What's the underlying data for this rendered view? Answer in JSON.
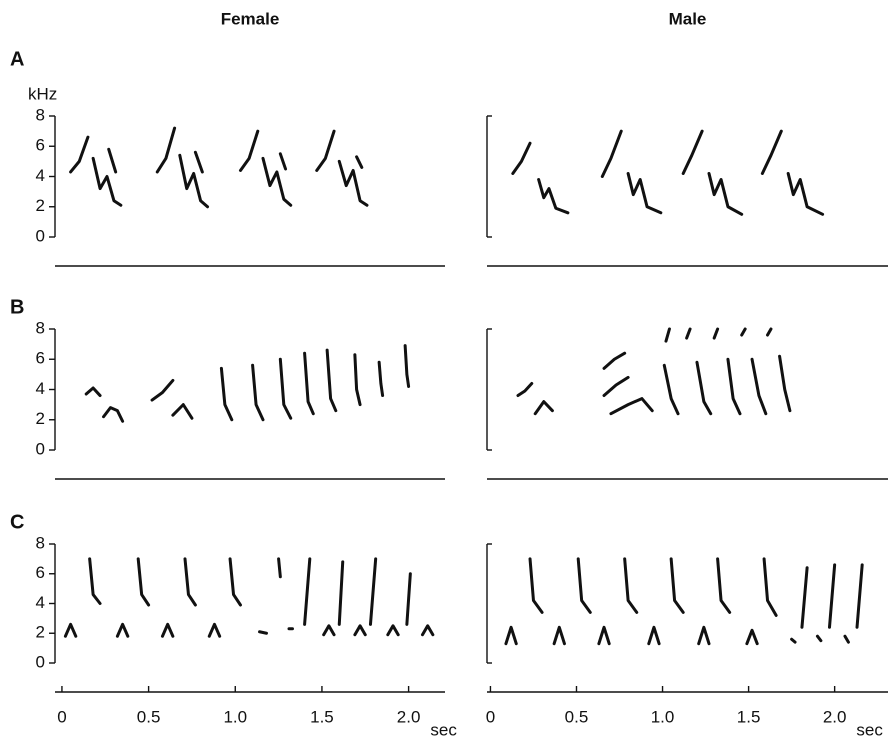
{
  "chart_data": [
    {
      "type": "spectrogram",
      "title": "Female",
      "panel_label": "A",
      "ylabel": "kHz",
      "xlim": [
        -0.04,
        2.21
      ],
      "ylim": [
        0,
        8
      ],
      "yticks": [
        0,
        2,
        4,
        6,
        8
      ],
      "strokes": [
        {
          "x": [
            0.05,
            0.1,
            0.15
          ],
          "y": [
            4.3,
            5.0,
            6.6
          ]
        },
        {
          "x": [
            0.18,
            0.22,
            0.26,
            0.3,
            0.34
          ],
          "y": [
            5.2,
            3.2,
            4.0,
            2.4,
            2.1
          ]
        },
        {
          "x": [
            0.27,
            0.31
          ],
          "y": [
            5.8,
            4.3
          ]
        },
        {
          "x": [
            0.55,
            0.6,
            0.65
          ],
          "y": [
            4.3,
            5.2,
            7.2
          ]
        },
        {
          "x": [
            0.68,
            0.72,
            0.76,
            0.8,
            0.84
          ],
          "y": [
            5.4,
            3.2,
            4.2,
            2.4,
            2.0
          ]
        },
        {
          "x": [
            0.77,
            0.81
          ],
          "y": [
            5.6,
            4.3
          ]
        },
        {
          "x": [
            1.03,
            1.08,
            1.13
          ],
          "y": [
            4.4,
            5.2,
            7.0
          ]
        },
        {
          "x": [
            1.16,
            1.2,
            1.24,
            1.28,
            1.32
          ],
          "y": [
            5.2,
            3.4,
            4.3,
            2.5,
            2.1
          ]
        },
        {
          "x": [
            1.26,
            1.29
          ],
          "y": [
            5.5,
            4.5
          ]
        },
        {
          "x": [
            1.47,
            1.52,
            1.57
          ],
          "y": [
            4.4,
            5.2,
            7.0
          ]
        },
        {
          "x": [
            1.6,
            1.64,
            1.68,
            1.72,
            1.76
          ],
          "y": [
            5.0,
            3.4,
            4.4,
            2.4,
            2.1
          ]
        },
        {
          "x": [
            1.7,
            1.73
          ],
          "y": [
            5.3,
            4.6
          ]
        }
      ]
    },
    {
      "type": "spectrogram",
      "title": "Male",
      "xlim": [
        -0.02,
        2.31
      ],
      "ylim": [
        0,
        8
      ],
      "strokes": [
        {
          "x": [
            0.13,
            0.18,
            0.23
          ],
          "y": [
            4.2,
            5.0,
            6.2
          ]
        },
        {
          "x": [
            0.28,
            0.31,
            0.34,
            0.38,
            0.45
          ],
          "y": [
            3.8,
            2.6,
            3.2,
            1.9,
            1.6
          ]
        },
        {
          "x": [
            0.65,
            0.7,
            0.76
          ],
          "y": [
            4.0,
            5.2,
            7.0
          ]
        },
        {
          "x": [
            0.8,
            0.83,
            0.87,
            0.91,
            0.99
          ],
          "y": [
            4.2,
            2.8,
            3.8,
            2.0,
            1.6
          ]
        },
        {
          "x": [
            1.12,
            1.17,
            1.23
          ],
          "y": [
            4.2,
            5.4,
            7.0
          ]
        },
        {
          "x": [
            1.27,
            1.3,
            1.34,
            1.38,
            1.46
          ],
          "y": [
            4.2,
            2.8,
            3.8,
            2.0,
            1.5
          ]
        },
        {
          "x": [
            1.58,
            1.63,
            1.69
          ],
          "y": [
            4.2,
            5.4,
            7.0
          ]
        },
        {
          "x": [
            1.73,
            1.76,
            1.8,
            1.84,
            1.93
          ],
          "y": [
            4.2,
            2.8,
            3.8,
            2.0,
            1.5
          ]
        }
      ]
    },
    {
      "type": "spectrogram",
      "panel_label": "B",
      "xlim": [
        -0.04,
        2.21
      ],
      "ylim": [
        0,
        8
      ],
      "yticks": [
        0,
        2,
        4,
        6,
        8
      ],
      "strokes": [
        {
          "x": [
            0.14,
            0.18,
            0.22
          ],
          "y": [
            3.7,
            4.1,
            3.6
          ]
        },
        {
          "x": [
            0.24,
            0.28,
            0.32,
            0.35
          ],
          "y": [
            2.2,
            2.8,
            2.6,
            1.9
          ]
        },
        {
          "x": [
            0.52,
            0.58,
            0.64
          ],
          "y": [
            3.3,
            3.8,
            4.6
          ]
        },
        {
          "x": [
            0.64,
            0.7,
            0.75
          ],
          "y": [
            2.3,
            3.0,
            2.1
          ]
        },
        {
          "x": [
            0.92,
            0.94,
            0.98
          ],
          "y": [
            5.4,
            3.0,
            2.0
          ]
        },
        {
          "x": [
            1.1,
            1.12,
            1.16
          ],
          "y": [
            5.6,
            3.0,
            2.0
          ]
        },
        {
          "x": [
            1.26,
            1.28,
            1.32
          ],
          "y": [
            6.0,
            3.0,
            2.1
          ]
        },
        {
          "x": [
            1.4,
            1.42,
            1.45
          ],
          "y": [
            6.4,
            3.2,
            2.4
          ]
        },
        {
          "x": [
            1.53,
            1.55,
            1.58
          ],
          "y": [
            6.6,
            3.4,
            2.6
          ]
        },
        {
          "x": [
            1.69,
            1.7,
            1.72
          ],
          "y": [
            6.3,
            4.0,
            3.0
          ]
        },
        {
          "x": [
            1.83,
            1.84,
            1.85
          ],
          "y": [
            5.8,
            4.4,
            3.6
          ]
        },
        {
          "x": [
            1.98,
            1.99,
            2.0
          ],
          "y": [
            6.9,
            5.0,
            4.2
          ]
        }
      ]
    },
    {
      "type": "spectrogram",
      "xlim": [
        -0.02,
        2.31
      ],
      "ylim": [
        0,
        8
      ],
      "strokes": [
        {
          "x": [
            0.16,
            0.2,
            0.24
          ],
          "y": [
            3.6,
            3.9,
            4.4
          ]
        },
        {
          "x": [
            0.26,
            0.31,
            0.36
          ],
          "y": [
            2.4,
            3.2,
            2.6
          ]
        },
        {
          "x": [
            0.66,
            0.72,
            0.78
          ],
          "y": [
            5.4,
            6.0,
            6.4
          ]
        },
        {
          "x": [
            0.66,
            0.73,
            0.8
          ],
          "y": [
            3.6,
            4.3,
            4.8
          ]
        },
        {
          "x": [
            0.7,
            0.8,
            0.88,
            0.94
          ],
          "y": [
            2.4,
            3.0,
            3.4,
            2.6
          ]
        },
        {
          "x": [
            1.01,
            1.05,
            1.09
          ],
          "y": [
            5.6,
            3.4,
            2.4
          ]
        },
        {
          "x": [
            1.2,
            1.24,
            1.28
          ],
          "y": [
            5.8,
            3.2,
            2.4
          ]
        },
        {
          "x": [
            1.38,
            1.41,
            1.45
          ],
          "y": [
            6.0,
            3.4,
            2.4
          ]
        },
        {
          "x": [
            1.52,
            1.56,
            1.6
          ],
          "y": [
            6.0,
            3.6,
            2.4
          ]
        },
        {
          "x": [
            1.68,
            1.71,
            1.74
          ],
          "y": [
            6.2,
            4.0,
            2.6
          ]
        },
        {
          "x": [
            1.02,
            1.04
          ],
          "y": [
            7.2,
            8.0
          ]
        },
        {
          "x": [
            1.14,
            1.16
          ],
          "y": [
            7.4,
            8.0
          ]
        },
        {
          "x": [
            1.3,
            1.32
          ],
          "y": [
            7.4,
            8.0
          ]
        },
        {
          "x": [
            1.46,
            1.48
          ],
          "y": [
            7.6,
            8.0
          ]
        },
        {
          "x": [
            1.61,
            1.63
          ],
          "y": [
            7.6,
            8.0
          ]
        }
      ]
    },
    {
      "type": "spectrogram",
      "panel_label": "C",
      "xlabel": "sec",
      "xlim": [
        -0.04,
        2.21
      ],
      "ylim": [
        0,
        8
      ],
      "yticks": [
        0,
        2,
        4,
        6,
        8
      ],
      "xticks": [
        0,
        0.5,
        {
          "value": 1,
          "label": "1.0"
        },
        1.5,
        {
          "value": 2,
          "label": "2.0"
        }
      ],
      "strokes": [
        {
          "x": [
            0.02,
            0.05,
            0.08
          ],
          "y": [
            1.8,
            2.6,
            1.8
          ]
        },
        {
          "x": [
            0.32,
            0.35,
            0.38
          ],
          "y": [
            1.8,
            2.6,
            1.8
          ]
        },
        {
          "x": [
            0.58,
            0.61,
            0.64
          ],
          "y": [
            1.8,
            2.6,
            1.8
          ]
        },
        {
          "x": [
            0.85,
            0.88,
            0.91
          ],
          "y": [
            1.8,
            2.6,
            1.8
          ]
        },
        {
          "x": [
            1.14,
            1.18
          ],
          "y": [
            2.1,
            2.0
          ]
        },
        {
          "x": [
            1.31,
            1.33
          ],
          "y": [
            2.3,
            2.3
          ]
        },
        {
          "x": [
            1.51,
            1.54,
            1.57
          ],
          "y": [
            1.9,
            2.5,
            1.9
          ]
        },
        {
          "x": [
            1.69,
            1.72,
            1.75
          ],
          "y": [
            1.9,
            2.5,
            1.9
          ]
        },
        {
          "x": [
            1.88,
            1.91,
            1.94
          ],
          "y": [
            1.9,
            2.5,
            1.9
          ]
        },
        {
          "x": [
            2.08,
            2.11,
            2.14
          ],
          "y": [
            1.9,
            2.5,
            1.9
          ]
        },
        {
          "x": [
            0.16,
            0.18,
            0.22
          ],
          "y": [
            7.0,
            4.6,
            4.0
          ]
        },
        {
          "x": [
            0.44,
            0.46,
            0.5
          ],
          "y": [
            7.0,
            4.6,
            3.9
          ]
        },
        {
          "x": [
            0.71,
            0.73,
            0.77
          ],
          "y": [
            7.0,
            4.6,
            3.9
          ]
        },
        {
          "x": [
            0.97,
            0.99,
            1.03
          ],
          "y": [
            7.0,
            4.6,
            3.9
          ]
        },
        {
          "x": [
            1.25,
            1.26
          ],
          "y": [
            7.0,
            5.8
          ]
        },
        {
          "x": [
            1.43,
            1.4
          ],
          "y": [
            7.0,
            2.6
          ]
        },
        {
          "x": [
            1.62,
            1.6
          ],
          "y": [
            6.8,
            2.6
          ]
        },
        {
          "x": [
            1.81,
            1.78
          ],
          "y": [
            7.0,
            2.6
          ]
        },
        {
          "x": [
            2.01,
            1.99
          ],
          "y": [
            6.0,
            2.6
          ]
        }
      ]
    },
    {
      "type": "spectrogram",
      "xlabel": "sec",
      "xlim": [
        -0.02,
        2.31
      ],
      "ylim": [
        0,
        8
      ],
      "xticks": [
        0,
        0.5,
        {
          "value": 1,
          "label": "1.0"
        },
        1.5,
        {
          "value": 2,
          "label": "2.0"
        }
      ],
      "strokes": [
        {
          "x": [
            0.09,
            0.12,
            0.15
          ],
          "y": [
            1.3,
            2.4,
            1.3
          ]
        },
        {
          "x": [
            0.37,
            0.4,
            0.43
          ],
          "y": [
            1.3,
            2.4,
            1.3
          ]
        },
        {
          "x": [
            0.63,
            0.66,
            0.69
          ],
          "y": [
            1.3,
            2.4,
            1.3
          ]
        },
        {
          "x": [
            0.92,
            0.95,
            0.98
          ],
          "y": [
            1.3,
            2.4,
            1.3
          ]
        },
        {
          "x": [
            1.21,
            1.24,
            1.27
          ],
          "y": [
            1.3,
            2.4,
            1.3
          ]
        },
        {
          "x": [
            1.49,
            1.52,
            1.55
          ],
          "y": [
            1.3,
            2.2,
            1.3
          ]
        },
        {
          "x": [
            1.75,
            1.77
          ],
          "y": [
            1.6,
            1.4
          ]
        },
        {
          "x": [
            1.9,
            1.92
          ],
          "y": [
            1.8,
            1.5
          ]
        },
        {
          "x": [
            2.06,
            2.08
          ],
          "y": [
            1.8,
            1.4
          ]
        },
        {
          "x": [
            0.23,
            0.25,
            0.3
          ],
          "y": [
            7.0,
            4.2,
            3.4
          ]
        },
        {
          "x": [
            0.51,
            0.53,
            0.58
          ],
          "y": [
            7.0,
            4.2,
            3.4
          ]
        },
        {
          "x": [
            0.78,
            0.8,
            0.85
          ],
          "y": [
            7.0,
            4.2,
            3.4
          ]
        },
        {
          "x": [
            1.05,
            1.07,
            1.12
          ],
          "y": [
            7.0,
            4.2,
            3.4
          ]
        },
        {
          "x": [
            1.32,
            1.34,
            1.39
          ],
          "y": [
            7.0,
            4.2,
            3.4
          ]
        },
        {
          "x": [
            1.59,
            1.61,
            1.66
          ],
          "y": [
            7.0,
            4.2,
            3.2
          ]
        },
        {
          "x": [
            1.84,
            1.81
          ],
          "y": [
            6.4,
            2.4
          ]
        },
        {
          "x": [
            2.0,
            1.97
          ],
          "y": [
            6.6,
            2.4
          ]
        },
        {
          "x": [
            2.16,
            2.13
          ],
          "y": [
            6.6,
            2.4
          ]
        }
      ]
    }
  ]
}
